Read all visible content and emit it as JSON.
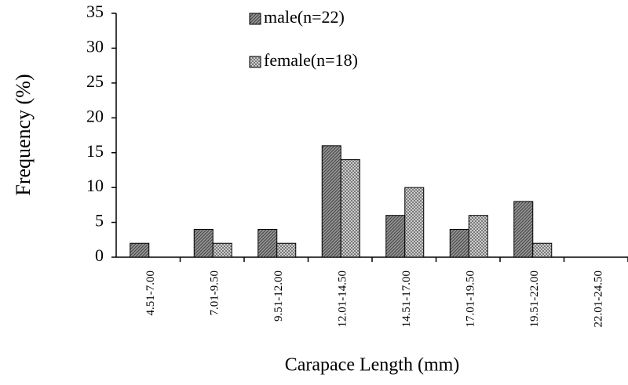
{
  "chart_data": {
    "type": "bar",
    "x_label": "Carapace Length (mm)",
    "y_label": "Frequency (%)",
    "categories": [
      "4.51-7.00",
      "7.01-9.50",
      "9.51-12.00",
      "12.01-14.50",
      "14.51-17.00",
      "17.01-19.50",
      "19.51-22.00",
      "22.01-24.50"
    ],
    "series": [
      {
        "name": "male(n=22)",
        "color": "#4a4a4a",
        "values": [
          2,
          4,
          4,
          16,
          6,
          4,
          8,
          0
        ]
      },
      {
        "name": "female(n=18)",
        "color": "#6a6a6a",
        "values": [
          0,
          2,
          2,
          14,
          10,
          6,
          2,
          0
        ]
      }
    ],
    "ylim": [
      0,
      35
    ],
    "yticks": [
      0,
      5,
      10,
      15,
      20,
      25,
      30,
      35
    ]
  }
}
